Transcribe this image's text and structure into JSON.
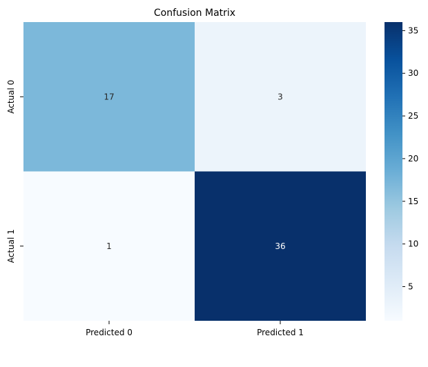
{
  "chart_data": {
    "type": "heatmap",
    "title": "Confusion Matrix",
    "xlabel": "",
    "ylabel": "",
    "x_categories": [
      "Predicted 0",
      "Predicted 1"
    ],
    "y_categories": [
      "Actual 0",
      "Actual 1"
    ],
    "values": [
      [
        17,
        3
      ],
      [
        1,
        36
      ]
    ],
    "cell_labels": [
      [
        "17",
        "3"
      ],
      [
        "1",
        "36"
      ]
    ],
    "colorbar": {
      "range": [
        1,
        36
      ],
      "ticks": [
        5,
        10,
        15,
        20,
        25,
        30,
        35
      ],
      "tick_labels": [
        "5",
        "10",
        "15",
        "20",
        "25",
        "30",
        "35"
      ]
    },
    "colormap": "Blues",
    "colors": {
      "low": "#f7fbff",
      "high": "#08306b",
      "annot_dark": "#262626",
      "annot_light": "#ffffff"
    }
  }
}
